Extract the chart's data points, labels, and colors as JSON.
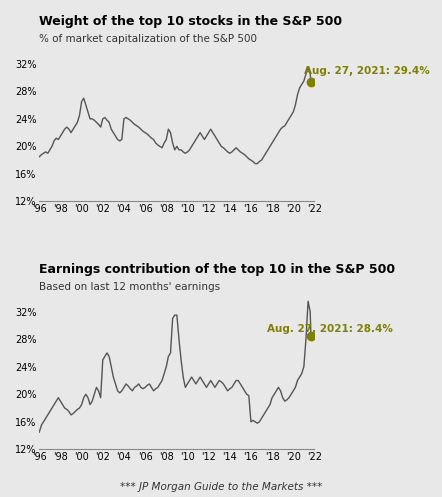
{
  "title1": "Weight of the top 10 stocks in the S&P 500",
  "subtitle1": "% of market capitalization of the S&P 500",
  "title2": "Earnings contribution of the top 10 in the S&P 500",
  "subtitle2": "Based on last 12 months' earnings",
  "footer": "*** JP Morgan Guide to the Markets ***",
  "annotation1": "Aug. 27, 2021: 29.4%",
  "annotation2": "Aug. 27, 2021: 28.4%",
  "annotation_color": "#808000",
  "line_color": "#555555",
  "bg_color": "#e8e8e8",
  "dot_color": "#808000",
  "ylim": [
    12,
    34
  ],
  "yticks": [
    12,
    16,
    20,
    24,
    28,
    32
  ],
  "x_start": 1996,
  "x_end": 2022,
  "xtick_years": [
    1996,
    1998,
    2000,
    2002,
    2004,
    2006,
    2008,
    2010,
    2012,
    2014,
    2016,
    2018,
    2020,
    2022
  ],
  "xtick_labels": [
    "'96",
    "'98",
    "'00",
    "'02",
    "'04",
    "'06",
    "'08",
    "'10",
    "'12",
    "'14",
    "'16",
    "'18",
    "'20",
    "'22"
  ],
  "chart1_data_x": [
    1996.0,
    1996.2,
    1996.4,
    1996.6,
    1996.8,
    1997.0,
    1997.2,
    1997.4,
    1997.6,
    1997.8,
    1998.0,
    1998.2,
    1998.4,
    1998.6,
    1998.8,
    1999.0,
    1999.2,
    1999.4,
    1999.6,
    1999.8,
    2000.0,
    2000.2,
    2000.4,
    2000.6,
    2000.8,
    2001.0,
    2001.2,
    2001.4,
    2001.6,
    2001.8,
    2002.0,
    2002.2,
    2002.4,
    2002.6,
    2002.8,
    2003.0,
    2003.2,
    2003.4,
    2003.6,
    2003.8,
    2004.0,
    2004.2,
    2004.4,
    2004.6,
    2004.8,
    2005.0,
    2005.2,
    2005.4,
    2005.6,
    2005.8,
    2006.0,
    2006.2,
    2006.4,
    2006.6,
    2006.8,
    2007.0,
    2007.2,
    2007.4,
    2007.6,
    2007.8,
    2008.0,
    2008.2,
    2008.4,
    2008.6,
    2008.8,
    2009.0,
    2009.2,
    2009.4,
    2009.6,
    2009.8,
    2010.0,
    2010.2,
    2010.4,
    2010.6,
    2010.8,
    2011.0,
    2011.2,
    2011.4,
    2011.6,
    2011.8,
    2012.0,
    2012.2,
    2012.4,
    2012.6,
    2012.8,
    2013.0,
    2013.2,
    2013.4,
    2013.6,
    2013.8,
    2014.0,
    2014.2,
    2014.4,
    2014.6,
    2014.8,
    2015.0,
    2015.2,
    2015.4,
    2015.6,
    2015.8,
    2016.0,
    2016.2,
    2016.4,
    2016.6,
    2016.8,
    2017.0,
    2017.2,
    2017.4,
    2017.6,
    2017.8,
    2018.0,
    2018.2,
    2018.4,
    2018.6,
    2018.8,
    2019.0,
    2019.2,
    2019.4,
    2019.6,
    2019.8,
    2020.0,
    2020.2,
    2020.4,
    2020.6,
    2020.8,
    2021.0,
    2021.2,
    2021.4,
    2021.6,
    2021.67
  ],
  "chart1_data_y": [
    18.5,
    18.8,
    19.0,
    19.2,
    19.0,
    19.5,
    20.0,
    20.8,
    21.2,
    21.0,
    21.5,
    22.0,
    22.5,
    22.8,
    22.5,
    22.0,
    22.5,
    23.0,
    23.5,
    24.5,
    26.5,
    27.0,
    26.0,
    25.0,
    24.0,
    24.0,
    23.8,
    23.5,
    23.2,
    22.8,
    24.0,
    24.2,
    23.8,
    23.5,
    22.5,
    22.0,
    21.5,
    21.0,
    20.8,
    21.0,
    24.0,
    24.2,
    24.0,
    23.8,
    23.5,
    23.2,
    23.0,
    22.8,
    22.5,
    22.2,
    22.0,
    21.8,
    21.5,
    21.2,
    21.0,
    20.5,
    20.2,
    20.0,
    19.8,
    20.5,
    21.0,
    22.5,
    22.0,
    20.5,
    19.5,
    20.0,
    19.5,
    19.5,
    19.2,
    19.0,
    19.2,
    19.5,
    20.0,
    20.5,
    21.0,
    21.5,
    22.0,
    21.5,
    21.0,
    21.5,
    22.0,
    22.5,
    22.0,
    21.5,
    21.0,
    20.5,
    20.0,
    19.8,
    19.5,
    19.2,
    19.0,
    19.2,
    19.5,
    19.8,
    19.5,
    19.2,
    19.0,
    18.8,
    18.5,
    18.2,
    18.0,
    17.8,
    17.5,
    17.5,
    17.8,
    18.0,
    18.5,
    19.0,
    19.5,
    20.0,
    20.5,
    21.0,
    21.5,
    22.0,
    22.5,
    22.8,
    23.0,
    23.5,
    24.0,
    24.5,
    25.0,
    26.0,
    27.5,
    28.5,
    29.0,
    29.5,
    30.5,
    31.5,
    30.5,
    29.4
  ],
  "chart2_data_x": [
    1996.0,
    1996.2,
    1996.4,
    1996.6,
    1996.8,
    1997.0,
    1997.2,
    1997.4,
    1997.6,
    1997.8,
    1998.0,
    1998.2,
    1998.4,
    1998.6,
    1998.8,
    1999.0,
    1999.2,
    1999.4,
    1999.6,
    1999.8,
    2000.0,
    2000.2,
    2000.4,
    2000.6,
    2000.8,
    2001.0,
    2001.2,
    2001.4,
    2001.6,
    2001.8,
    2002.0,
    2002.2,
    2002.4,
    2002.6,
    2002.8,
    2003.0,
    2003.2,
    2003.4,
    2003.6,
    2003.8,
    2004.0,
    2004.2,
    2004.4,
    2004.6,
    2004.8,
    2005.0,
    2005.2,
    2005.4,
    2005.6,
    2005.8,
    2006.0,
    2006.2,
    2006.4,
    2006.6,
    2006.8,
    2007.0,
    2007.2,
    2007.4,
    2007.6,
    2007.8,
    2008.0,
    2008.2,
    2008.4,
    2008.6,
    2008.8,
    2009.0,
    2009.2,
    2009.4,
    2009.6,
    2009.8,
    2010.0,
    2010.2,
    2010.4,
    2010.6,
    2010.8,
    2011.0,
    2011.2,
    2011.4,
    2011.6,
    2011.8,
    2012.0,
    2012.2,
    2012.4,
    2012.6,
    2012.8,
    2013.0,
    2013.2,
    2013.4,
    2013.6,
    2013.8,
    2014.0,
    2014.2,
    2014.4,
    2014.6,
    2014.8,
    2015.0,
    2015.2,
    2015.4,
    2015.6,
    2015.8,
    2016.0,
    2016.2,
    2016.4,
    2016.6,
    2016.8,
    2017.0,
    2017.2,
    2017.4,
    2017.6,
    2017.8,
    2018.0,
    2018.2,
    2018.4,
    2018.6,
    2018.8,
    2019.0,
    2019.2,
    2019.4,
    2019.6,
    2019.8,
    2020.0,
    2020.2,
    2020.4,
    2020.6,
    2020.8,
    2021.0,
    2021.2,
    2021.4,
    2021.6,
    2021.67
  ],
  "chart2_data_y": [
    14.5,
    15.5,
    16.0,
    16.5,
    17.0,
    17.5,
    18.0,
    18.5,
    19.0,
    19.5,
    19.0,
    18.5,
    18.0,
    17.8,
    17.5,
    17.0,
    17.2,
    17.5,
    17.8,
    18.0,
    18.5,
    19.5,
    20.0,
    19.5,
    18.5,
    19.0,
    20.0,
    21.0,
    20.5,
    19.5,
    25.0,
    25.5,
    26.0,
    25.5,
    24.0,
    22.5,
    21.5,
    20.5,
    20.2,
    20.5,
    21.0,
    21.5,
    21.2,
    20.8,
    20.5,
    21.0,
    21.2,
    21.5,
    21.0,
    20.8,
    21.0,
    21.3,
    21.5,
    21.0,
    20.5,
    20.8,
    21.0,
    21.5,
    22.0,
    23.0,
    24.0,
    25.5,
    26.0,
    31.0,
    31.5,
    31.5,
    28.0,
    25.0,
    22.5,
    21.0,
    21.5,
    22.0,
    22.5,
    22.0,
    21.5,
    22.0,
    22.5,
    22.0,
    21.5,
    21.0,
    21.5,
    22.0,
    21.5,
    21.0,
    21.5,
    22.0,
    21.8,
    21.5,
    21.0,
    20.5,
    20.8,
    21.0,
    21.5,
    22.0,
    22.0,
    21.5,
    21.0,
    20.5,
    20.0,
    19.8,
    16.0,
    16.2,
    16.0,
    15.8,
    16.0,
    16.5,
    17.0,
    17.5,
    18.0,
    18.5,
    19.5,
    20.0,
    20.5,
    21.0,
    20.5,
    19.5,
    19.0,
    19.2,
    19.5,
    20.0,
    20.5,
    21.0,
    22.0,
    22.5,
    23.0,
    24.0,
    28.0,
    33.5,
    32.0,
    28.4
  ]
}
